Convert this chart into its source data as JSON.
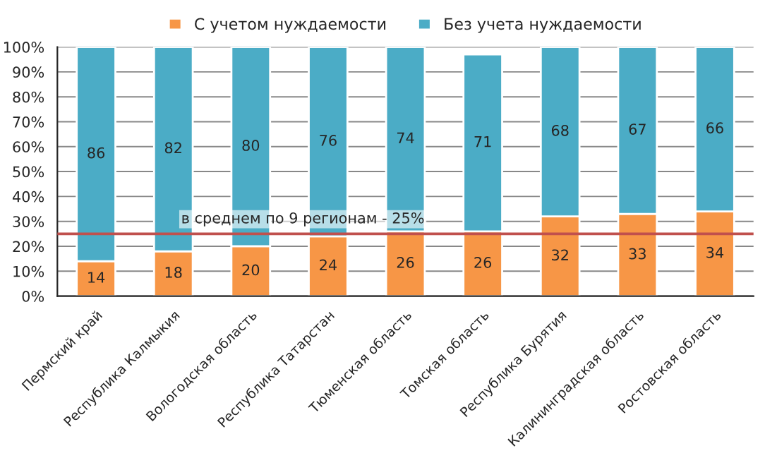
{
  "chart_data": {
    "type": "bar",
    "stacked": true,
    "categories": [
      "Пермский край",
      "Республика Калмыкия",
      "Вологодская область",
      "Республика Татарстан",
      "Тюменская область",
      "Томская область",
      "Республика Бурятия",
      "Калининградская область",
      "Ростовская область"
    ],
    "series": [
      {
        "name": "С учетом нуждаемости",
        "color": "#f79646",
        "values": [
          14,
          18,
          20,
          24,
          26,
          26,
          32,
          33,
          34
        ]
      },
      {
        "name": "Без учета нуждаемости",
        "color": "#4bacc6",
        "values": [
          86,
          82,
          80,
          76,
          74,
          71,
          68,
          67,
          66
        ]
      }
    ],
    "ylim": [
      0,
      100
    ],
    "yticks": [
      {
        "value": 0,
        "label": "0%"
      },
      {
        "value": 10,
        "label": "10%"
      },
      {
        "value": 20,
        "label": "20%"
      },
      {
        "value": 30,
        "label": "30%"
      },
      {
        "value": 40,
        "label": "40%"
      },
      {
        "value": 50,
        "label": "50%"
      },
      {
        "value": 60,
        "label": "60%"
      },
      {
        "value": 70,
        "label": "70%"
      },
      {
        "value": 80,
        "label": "80%"
      },
      {
        "value": 90,
        "label": "90%"
      },
      {
        "value": 100,
        "label": "100%"
      }
    ],
    "ref_lines": [
      {
        "axis": "y",
        "value": 25,
        "label": "в среднем по 9 регионам - 25%",
        "color": "#c0504d"
      }
    ],
    "data_labels": true,
    "grid": "y",
    "legend": "top"
  }
}
